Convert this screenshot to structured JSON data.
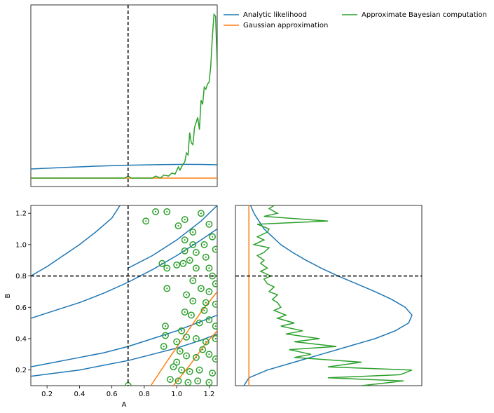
{
  "chart_data": [
    {
      "type": "line",
      "panel": "marginal-A",
      "xlim": [
        0.1,
        1.25
      ],
      "yticks_shown": false,
      "xticks_shown": false,
      "true_value": 0.7,
      "series": [
        {
          "name": "Analytic likelihood",
          "color": "#1f77b4",
          "x": [
            0.1,
            0.3,
            0.5,
            0.7,
            0.9,
            1.05,
            1.15,
            1.25
          ],
          "y": [
            0.09,
            0.105,
            0.118,
            0.128,
            0.134,
            0.136,
            0.135,
            0.132
          ]
        },
        {
          "name": "Gaussian approximation",
          "color": "#ff7f0e",
          "x": [
            0.1,
            0.5,
            0.9,
            1.25
          ],
          "y": [
            0.0,
            0.0,
            0.0,
            0.0
          ]
        },
        {
          "name": "Approximate Bayesian computation",
          "color": "#2ca02c",
          "x": [
            0.1,
            0.6,
            0.68,
            0.7,
            0.72,
            0.8,
            0.85,
            0.87,
            0.9,
            0.92,
            0.95,
            0.97,
            0.99,
            1.01,
            1.02,
            1.04,
            1.05,
            1.06,
            1.07,
            1.08,
            1.09,
            1.1,
            1.11,
            1.12,
            1.13,
            1.14,
            1.15,
            1.16,
            1.17,
            1.18,
            1.19,
            1.2,
            1.21,
            1.22,
            1.23,
            1.24,
            1.25
          ],
          "y": [
            0.0,
            0.0,
            0.0,
            0.02,
            0.0,
            0.0,
            0.0,
            0.02,
            0.0,
            0.03,
            0.02,
            0.05,
            0.04,
            0.11,
            0.08,
            0.14,
            0.16,
            0.25,
            0.23,
            0.45,
            0.35,
            0.33,
            0.5,
            0.55,
            0.6,
            0.48,
            0.77,
            0.73,
            0.9,
            0.88,
            0.93,
            0.95,
            1.1,
            1.4,
            1.62,
            1.6,
            1.1
          ]
        }
      ]
    },
    {
      "type": "line",
      "panel": "joint-A-B",
      "xlabel": "A",
      "ylabel": "B",
      "xlim": [
        0.1,
        1.25
      ],
      "ylim": [
        0.1,
        1.25
      ],
      "xticks": [
        "0.2",
        "0.4",
        "0.6",
        "0.8",
        "1.0",
        "1.2"
      ],
      "yticks": [
        "0.2",
        "0.4",
        "0.6",
        "0.8",
        "1.0",
        "1.2"
      ],
      "true_A": 0.7,
      "true_B": 0.8,
      "series": [
        {
          "name": "Analytic likelihood contours",
          "color": "#1f77b4",
          "curves": [
            {
              "x": [
                0.1,
                0.25,
                0.4,
                0.55,
                0.7,
                0.85,
                1.0,
                1.15,
                1.25
              ],
              "y": [
                0.16,
                0.18,
                0.2,
                0.23,
                0.26,
                0.3,
                0.34,
                0.39,
                0.43
              ]
            },
            {
              "x": [
                0.1,
                0.25,
                0.4,
                0.55,
                0.7,
                0.85,
                1.0,
                1.15,
                1.25
              ],
              "y": [
                0.22,
                0.25,
                0.28,
                0.31,
                0.35,
                0.4,
                0.45,
                0.51,
                0.55
              ]
            },
            {
              "x": [
                0.1,
                0.25,
                0.4,
                0.55,
                0.7,
                0.85,
                1.0,
                1.15,
                1.25
              ],
              "y": [
                0.53,
                0.58,
                0.63,
                0.69,
                0.76,
                0.84,
                0.93,
                1.03,
                1.1
              ]
            },
            {
              "x": [
                0.1,
                0.2,
                0.3,
                0.4,
                0.5,
                0.6,
                0.65
              ],
              "y": [
                0.8,
                0.86,
                0.93,
                1.0,
                1.08,
                1.17,
                1.25
              ]
            },
            {
              "x": [
                0.7,
                0.85,
                1.0,
                1.15,
                1.25
              ],
              "y": [
                0.85,
                0.93,
                1.03,
                1.15,
                1.25
              ]
            }
          ]
        },
        {
          "name": "Gaussian approximation contours",
          "color": "#ff7f0e",
          "curves": [
            {
              "x": [
                0.84,
                0.95,
                1.05,
                1.15,
                1.25
              ],
              "y": [
                0.1,
                0.27,
                0.42,
                0.57,
                0.7
              ]
            },
            {
              "x": [
                0.98,
                1.08,
                1.18,
                1.25
              ],
              "y": [
                0.1,
                0.23,
                0.37,
                0.45
              ]
            }
          ]
        },
        {
          "name": "Approximate Bayesian computation contours",
          "color": "#2ca02c",
          "rings": [
            [
              0.7,
              0.1
            ],
            [
              0.81,
              1.15
            ],
            [
              0.87,
              1.21
            ],
            [
              0.94,
              1.21
            ],
            [
              0.91,
              0.88
            ],
            [
              0.94,
              0.85
            ],
            [
              1.0,
              0.87
            ],
            [
              1.04,
              0.88
            ],
            [
              0.94,
              0.72
            ],
            [
              0.93,
              0.48
            ],
            [
              0.93,
              0.42
            ],
            [
              0.92,
              0.35
            ],
            [
              1.05,
              1.16
            ],
            [
              1.01,
              1.12
            ],
            [
              1.1,
              1.08
            ],
            [
              1.05,
              1.03
            ],
            [
              1.1,
              1.0
            ],
            [
              1.05,
              0.96
            ],
            [
              1.12,
              0.95
            ],
            [
              1.08,
              0.9
            ],
            [
              1.18,
              0.92
            ],
            [
              1.2,
              0.85
            ],
            [
              1.22,
              0.8
            ],
            [
              1.1,
              0.77
            ],
            [
              1.15,
              0.72
            ],
            [
              1.2,
              0.7
            ],
            [
              1.24,
              0.75
            ],
            [
              1.06,
              0.68
            ],
            [
              1.1,
              0.64
            ],
            [
              1.18,
              0.63
            ],
            [
              1.24,
              0.62
            ],
            [
              1.05,
              0.57
            ],
            [
              1.09,
              0.55
            ],
            [
              1.14,
              0.5
            ],
            [
              1.2,
              0.52
            ],
            [
              1.24,
              0.48
            ],
            [
              1.03,
              0.45
            ],
            [
              1.06,
              0.41
            ],
            [
              1.12,
              0.4
            ],
            [
              1.18,
              0.38
            ],
            [
              1.24,
              0.4
            ],
            [
              1.02,
              0.32
            ],
            [
              1.06,
              0.29
            ],
            [
              1.12,
              0.28
            ],
            [
              1.2,
              0.3
            ],
            [
              1.24,
              0.27
            ],
            [
              0.98,
              0.22
            ],
            [
              1.03,
              0.2
            ],
            [
              1.08,
              0.19
            ],
            [
              1.14,
              0.2
            ],
            [
              1.22,
              0.18
            ],
            [
              0.96,
              0.14
            ],
            [
              1.01,
              0.13
            ],
            [
              1.07,
              0.12
            ],
            [
              1.13,
              0.13
            ],
            [
              1.2,
              0.12
            ],
            [
              1.15,
              1.2
            ],
            [
              1.2,
              1.13
            ],
            [
              1.22,
              1.05
            ],
            [
              1.17,
              1.0
            ],
            [
              1.24,
              0.97
            ],
            [
              1.12,
              0.85
            ],
            [
              1.17,
              0.58
            ],
            [
              1.0,
              0.38
            ],
            [
              1.16,
              0.33
            ],
            [
              1.0,
              0.25
            ]
          ]
        }
      ]
    },
    {
      "type": "line",
      "panel": "marginal-B",
      "ylim": [
        0.1,
        1.25
      ],
      "xticks_shown": false,
      "yticks_shown": false,
      "true_value": 0.8,
      "series": [
        {
          "name": "Analytic likelihood",
          "color": "#1f77b4",
          "y": [
            0.1,
            0.15,
            0.2,
            0.25,
            0.3,
            0.35,
            0.4,
            0.45,
            0.5,
            0.55,
            0.6,
            0.65,
            0.7,
            0.75,
            0.8,
            0.85,
            0.9,
            0.95,
            1.0,
            1.05,
            1.1,
            1.15,
            1.2,
            1.25
          ],
          "x": [
            0.0,
            0.03,
            0.14,
            0.3,
            0.46,
            0.62,
            0.78,
            0.9,
            0.98,
            1.0,
            0.96,
            0.88,
            0.78,
            0.67,
            0.56,
            0.46,
            0.37,
            0.29,
            0.22,
            0.17,
            0.12,
            0.09,
            0.06,
            0.04
          ]
        },
        {
          "name": "Gaussian approximation",
          "color": "#ff7f0e",
          "y": [
            0.1,
            1.25
          ],
          "x": [
            0.03,
            0.03
          ]
        },
        {
          "name": "Approximate Bayesian computation",
          "color": "#2ca02c",
          "y": [
            0.1,
            0.13,
            0.15,
            0.17,
            0.2,
            0.22,
            0.25,
            0.28,
            0.3,
            0.33,
            0.35,
            0.38,
            0.4,
            0.43,
            0.45,
            0.48,
            0.5,
            0.53,
            0.55,
            0.58,
            0.6,
            0.63,
            0.65,
            0.68,
            0.7,
            0.73,
            0.75,
            0.78,
            0.8,
            0.83,
            0.85,
            0.88,
            0.9,
            0.93,
            0.95,
            0.98,
            1.0,
            1.03,
            1.05,
            1.08,
            1.1,
            1.13,
            1.15,
            1.18,
            1.2,
            1.23,
            1.25
          ],
          "x": [
            0.7,
            0.95,
            0.5,
            0.93,
            1.0,
            0.5,
            0.7,
            0.3,
            0.4,
            0.27,
            0.55,
            0.3,
            0.45,
            0.25,
            0.35,
            0.22,
            0.3,
            0.2,
            0.25,
            0.18,
            0.22,
            0.2,
            0.17,
            0.2,
            0.15,
            0.18,
            0.14,
            0.12,
            0.16,
            0.1,
            0.14,
            0.1,
            0.12,
            0.08,
            0.12,
            0.15,
            0.06,
            0.12,
            0.08,
            0.14,
            0.15,
            0.08,
            0.5,
            0.12,
            0.2,
            0.15,
            0.18
          ]
        }
      ]
    }
  ],
  "legend": {
    "items": [
      {
        "label": "Analytic likelihood",
        "color": "#1f77b4"
      },
      {
        "label": "Gaussian approximation",
        "color": "#ff7f0e"
      },
      {
        "label": "Approximate Bayesian computation",
        "color": "#2ca02c"
      }
    ]
  },
  "axis_labels": {
    "x": "A",
    "y": "B"
  },
  "colors": {
    "analytic": "#1f77b4",
    "gaussian": "#ff7f0e",
    "abc": "#2ca02c",
    "truth": "#000000"
  }
}
